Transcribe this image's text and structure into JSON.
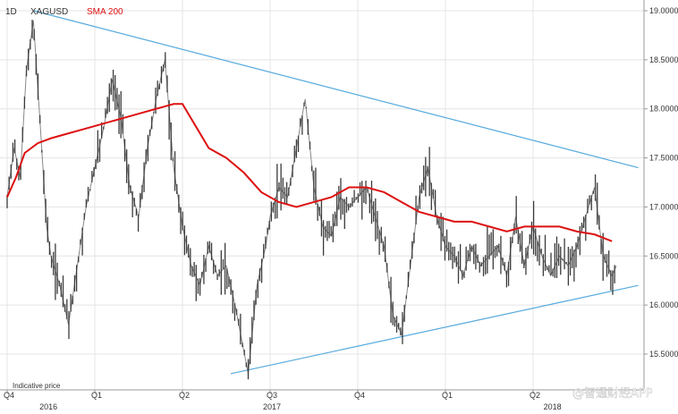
{
  "header": {
    "interval": "1D",
    "symbol": "XAGUSD",
    "indicator": "SMA 200"
  },
  "note": "Indicative price",
  "watermark": "@智通财经APP",
  "colors": {
    "price": "#3a3a3a",
    "sma": "#dd1111",
    "trend": "#55aadd",
    "grid": "#e4e4e4",
    "axis": "#999999"
  },
  "chart_data": {
    "type": "line",
    "ylim": [
      15.3,
      19.0
    ],
    "yticks": [
      "19.0000",
      "18.5000",
      "18.0000",
      "17.5000",
      "17.0000",
      "16.5000",
      "16.0000",
      "15.5000"
    ],
    "ytick_values": [
      19.0,
      18.5,
      18.0,
      17.5,
      17.0,
      16.5,
      16.0,
      15.5
    ],
    "x_quarters": [
      "Q4",
      "Q1",
      "Q2",
      "Q3",
      "Q4",
      "Q1",
      "Q2"
    ],
    "x_years": [
      "2016",
      "2017",
      "2018"
    ],
    "xrange": [
      0,
      7.2
    ],
    "quarter_pos": [
      0,
      1,
      2,
      3,
      4,
      5,
      6
    ],
    "year_pos": [
      0.45,
      3,
      6.2
    ],
    "series": [
      {
        "name": "XAGUSD",
        "x": [
          0,
          0.08,
          0.15,
          0.22,
          0.3,
          0.38,
          0.45,
          0.5,
          0.6,
          0.7,
          0.8,
          0.9,
          1.0,
          1.1,
          1.2,
          1.3,
          1.4,
          1.5,
          1.6,
          1.7,
          1.8,
          1.9,
          2.0,
          2.1,
          2.2,
          2.3,
          2.4,
          2.5,
          2.6,
          2.75,
          2.85,
          2.95,
          3.0,
          3.1,
          3.2,
          3.3,
          3.4,
          3.5,
          3.6,
          3.7,
          3.8,
          3.9,
          4.0,
          4.1,
          4.2,
          4.3,
          4.4,
          4.5,
          4.6,
          4.7,
          4.8,
          4.9,
          5.0,
          5.1,
          5.2,
          5.3,
          5.4,
          5.5,
          5.6,
          5.7,
          5.8,
          5.9,
          6.0,
          6.1,
          6.2,
          6.3,
          6.4,
          6.5,
          6.6,
          6.7,
          6.8,
          6.9,
          6.95
        ],
        "values": [
          17.1,
          17.6,
          17.3,
          18.4,
          18.9,
          17.8,
          16.8,
          16.5,
          16.2,
          15.8,
          16.4,
          17.0,
          17.4,
          17.8,
          18.3,
          17.9,
          17.2,
          16.9,
          17.6,
          18.1,
          18.5,
          17.4,
          16.8,
          16.4,
          16.2,
          16.6,
          16.3,
          16.4,
          16.0,
          15.3,
          16.2,
          16.6,
          16.9,
          17.2,
          17.1,
          17.6,
          18.1,
          17.2,
          16.8,
          16.7,
          17.1,
          17.0,
          17.1,
          17.2,
          16.9,
          16.6,
          15.9,
          15.7,
          16.4,
          17.1,
          17.4,
          16.9,
          16.6,
          16.5,
          16.3,
          16.6,
          16.4,
          16.5,
          16.6,
          16.3,
          16.9,
          16.4,
          16.8,
          16.5,
          16.3,
          16.5,
          16.4,
          16.6,
          16.9,
          17.2,
          16.5,
          16.3,
          16.4
        ]
      },
      {
        "name": "SMA 200",
        "x": [
          0,
          0.1,
          0.2,
          0.35,
          0.5,
          0.7,
          0.9,
          1.1,
          1.3,
          1.5,
          1.7,
          1.9,
          2.0,
          2.1,
          2.3,
          2.5,
          2.7,
          2.9,
          3.1,
          3.3,
          3.5,
          3.7,
          3.9,
          4.1,
          4.3,
          4.5,
          4.7,
          4.9,
          5.1,
          5.3,
          5.5,
          5.7,
          5.9,
          6.1,
          6.3,
          6.5,
          6.7,
          6.9
        ],
        "values": [
          17.1,
          17.3,
          17.55,
          17.65,
          17.7,
          17.75,
          17.8,
          17.85,
          17.9,
          17.95,
          18.0,
          18.05,
          18.05,
          17.9,
          17.6,
          17.5,
          17.35,
          17.15,
          17.05,
          17.0,
          17.05,
          17.1,
          17.2,
          17.2,
          17.15,
          17.05,
          16.95,
          16.9,
          16.85,
          16.85,
          16.8,
          16.75,
          16.8,
          16.8,
          16.8,
          16.75,
          16.72,
          16.65
        ]
      }
    ],
    "trendlines": [
      {
        "x": [
          0.3,
          7.2
        ],
        "values": [
          19.0,
          17.4
        ]
      },
      {
        "x": [
          2.55,
          7.2
        ],
        "values": [
          15.3,
          16.2
        ]
      }
    ]
  }
}
